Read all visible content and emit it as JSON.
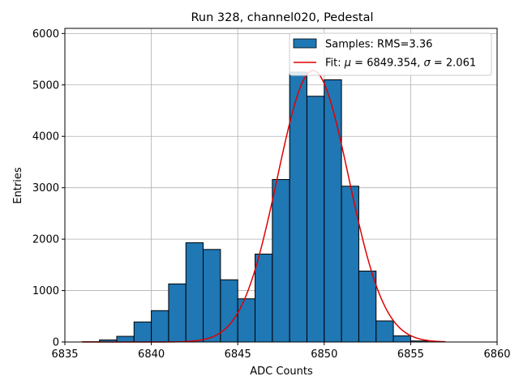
{
  "chart_data": {
    "type": "bar",
    "title": "Run 328, channel020, Pedestal",
    "xlabel": "ADC Counts",
    "ylabel": "Entries",
    "xlim": [
      6835,
      6860
    ],
    "ylim": [
      0,
      6100
    ],
    "xticks": [
      6835,
      6840,
      6845,
      6850,
      6855,
      6860
    ],
    "yticks": [
      0,
      1000,
      2000,
      3000,
      4000,
      5000,
      6000
    ],
    "grid": true,
    "legend_position": "top-right",
    "histogram": {
      "name": "Samples: RMS=3.36",
      "bin_width": 1,
      "bin_starts": [
        6836,
        6837,
        6838,
        6839,
        6840,
        6841,
        6842,
        6843,
        6844,
        6845,
        6846,
        6847,
        6848,
        6849,
        6850,
        6851,
        6852,
        6853,
        6854,
        6855,
        6856,
        6857,
        6858
      ],
      "values": [
        5,
        40,
        110,
        390,
        610,
        1130,
        1930,
        1800,
        1210,
        840,
        1710,
        3160,
        5250,
        4780,
        5100,
        3030,
        1380,
        410,
        120,
        20,
        3,
        0,
        0
      ],
      "color": "#1f77b4"
    },
    "fit": {
      "label_prefix": "Fit: ",
      "mu_symbol": "μ",
      "mu_text": " = 6849.354, ",
      "sigma_symbol": "σ",
      "sigma_text": " = 2.061",
      "mu": 6849.354,
      "sigma": 2.061,
      "amplitude": 5280,
      "x_range": [
        6836,
        6857
      ],
      "color": "#e00000"
    }
  }
}
